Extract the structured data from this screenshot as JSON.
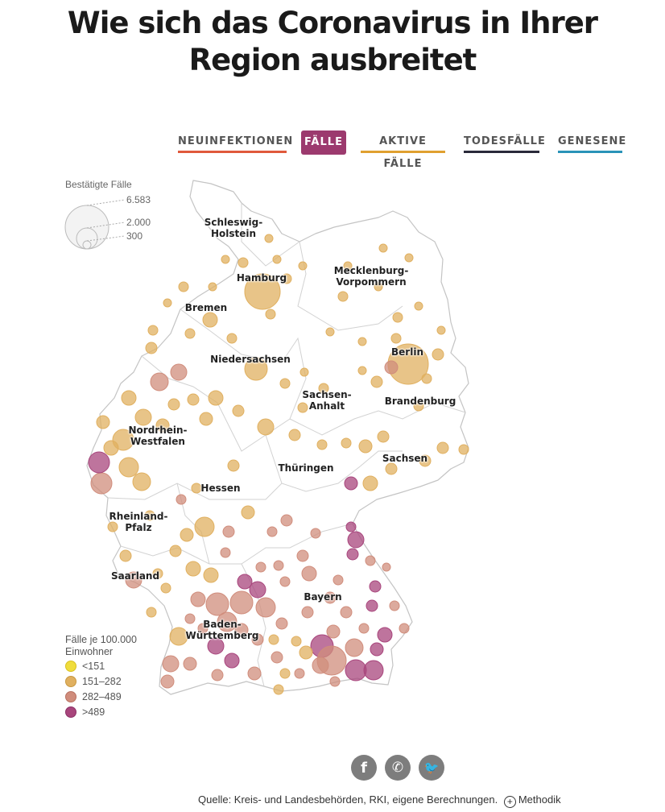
{
  "title": {
    "line1": "Wie sich das Coronavirus in Ihrer",
    "line2": "Region ausbreitet"
  },
  "tabs": [
    {
      "label": "NEUINFEKTIONEN",
      "color": "#e05a3c",
      "active": false
    },
    {
      "label": "FÄLLE",
      "color": "#9c3a6e",
      "active": true
    },
    {
      "label": "AKTIVE FÄLLE",
      "color": "#e0a030",
      "active": false
    },
    {
      "label": "TODESFÄLLE",
      "color": "#2a2a3a",
      "active": false
    },
    {
      "label": "GENESENE",
      "color": "#2a93b8",
      "active": false
    }
  ],
  "size_legend": {
    "title": "Bestätigte Fälle",
    "values": [
      "6.583",
      "2.000",
      "300"
    ]
  },
  "color_legend": {
    "title": "Fälle je 100.000 Einwohner",
    "classes": [
      {
        "label": "<151",
        "color": "#f0dd3c"
      },
      {
        "label": "151–282",
        "color": "#e0b060"
      },
      {
        "label": "282–489",
        "color": "#d08d7c"
      },
      {
        "label": ">489",
        "color": "#a8457c"
      }
    ]
  },
  "regions": [
    {
      "name": "Schleswig-",
      "name2": "Holstein"
    },
    {
      "name": "Hamburg",
      "name2": ""
    },
    {
      "name": "Mecklenburg-",
      "name2": "Vorpommern"
    },
    {
      "name": "Bremen",
      "name2": ""
    },
    {
      "name": "Niedersachsen",
      "name2": ""
    },
    {
      "name": "Berlin",
      "name2": ""
    },
    {
      "name": "Brandenburg",
      "name2": ""
    },
    {
      "name": "Sachsen-",
      "name2": "Anhalt"
    },
    {
      "name": "Nordrhein-",
      "name2": "Westfalen"
    },
    {
      "name": "Sachsen",
      "name2": ""
    },
    {
      "name": "Thüringen",
      "name2": ""
    },
    {
      "name": "Hessen",
      "name2": ""
    },
    {
      "name": "Rheinland-",
      "name2": "Pfalz"
    },
    {
      "name": "Saarland",
      "name2": ""
    },
    {
      "name": "Bayern",
      "name2": ""
    },
    {
      "name": "Baden-",
      "name2": "Württemberg"
    }
  ],
  "social": {
    "facebook": "f",
    "whatsapp": "✆",
    "twitter": "🐦"
  },
  "source": {
    "text": "Quelle: Kreis- und Landesbehörden, RKI, eigene Berechnungen.",
    "method_icon": "+",
    "method_label": "Methodik"
  }
}
